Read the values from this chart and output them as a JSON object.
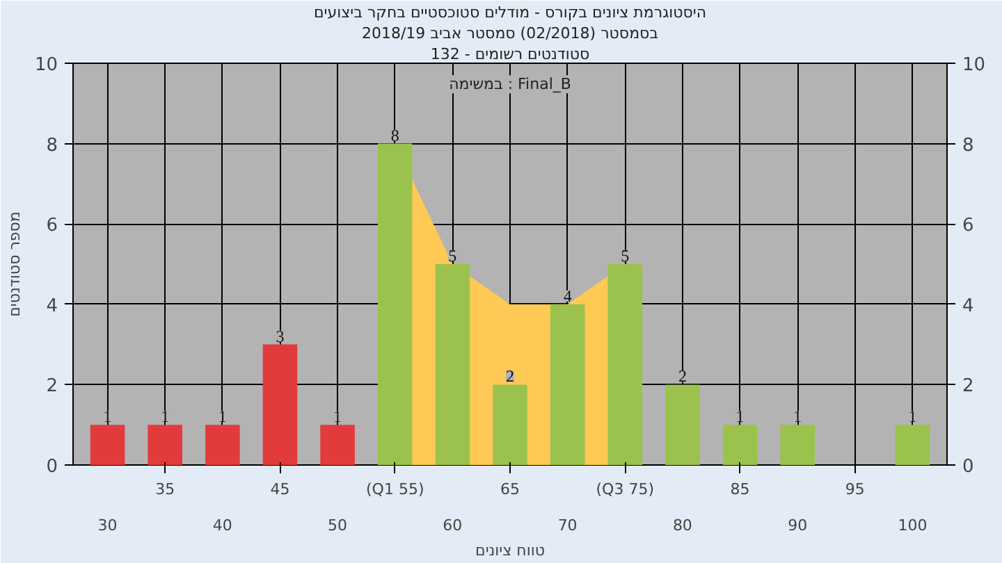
{
  "chart_data": {
    "type": "bar",
    "title": "היסטוגרמת ציונים בקורס - מודלים סטוכסטיים בחקר ביצועים",
    "subtitle": [
      "בסמסטר (02/2018) סמסטר אביב 2018/19",
      "סטודנטים רשומים - 132"
    ],
    "xlabel": "טווח ציונים",
    "ylabel": "מספר סטודנטים",
    "annotations": [
      "במשימה : Final_B"
    ],
    "categories": [
      "30",
      "35",
      "40",
      "45",
      "50",
      "(Q1 55)",
      "60",
      "65",
      "70",
      "(Q3 75)",
      "80",
      "85",
      "90",
      "95",
      "100"
    ],
    "series": [
      {
        "type": "area",
        "color": "#ffc955",
        "values": [
          null,
          null,
          null,
          null,
          null,
          8,
          5,
          4,
          4,
          5,
          null,
          null,
          null,
          null,
          null
        ]
      },
      {
        "colors": [
          "#e23b3b",
          "#e23b3b",
          "#e23b3b",
          "#e23b3b",
          "#e23b3b",
          "#9cc24e",
          "#9cc24e",
          "#9cc24e",
          "#9cc24e",
          "#9cc24e",
          "#9cc24e",
          "#9cc24e",
          "#9cc24e",
          "#9cc24e",
          "#9cc24e"
        ],
        "values": [
          1,
          1,
          1,
          3,
          1,
          8,
          5,
          2,
          4,
          5,
          2,
          1,
          1,
          null,
          1
        ],
        "value_labels": [
          "1",
          "1",
          "1",
          "3",
          "1",
          "8",
          "5",
          "2",
          "4",
          "5",
          "2",
          "1",
          "1",
          null,
          "1"
        ]
      }
    ],
    "ylim": [
      0,
      10
    ],
    "yticks": [
      0,
      2,
      4,
      6,
      8,
      10
    ],
    "y2lim": [
      0,
      10
    ],
    "y2ticks": [
      0,
      2,
      4,
      6,
      8,
      10
    ],
    "grid": true
  }
}
